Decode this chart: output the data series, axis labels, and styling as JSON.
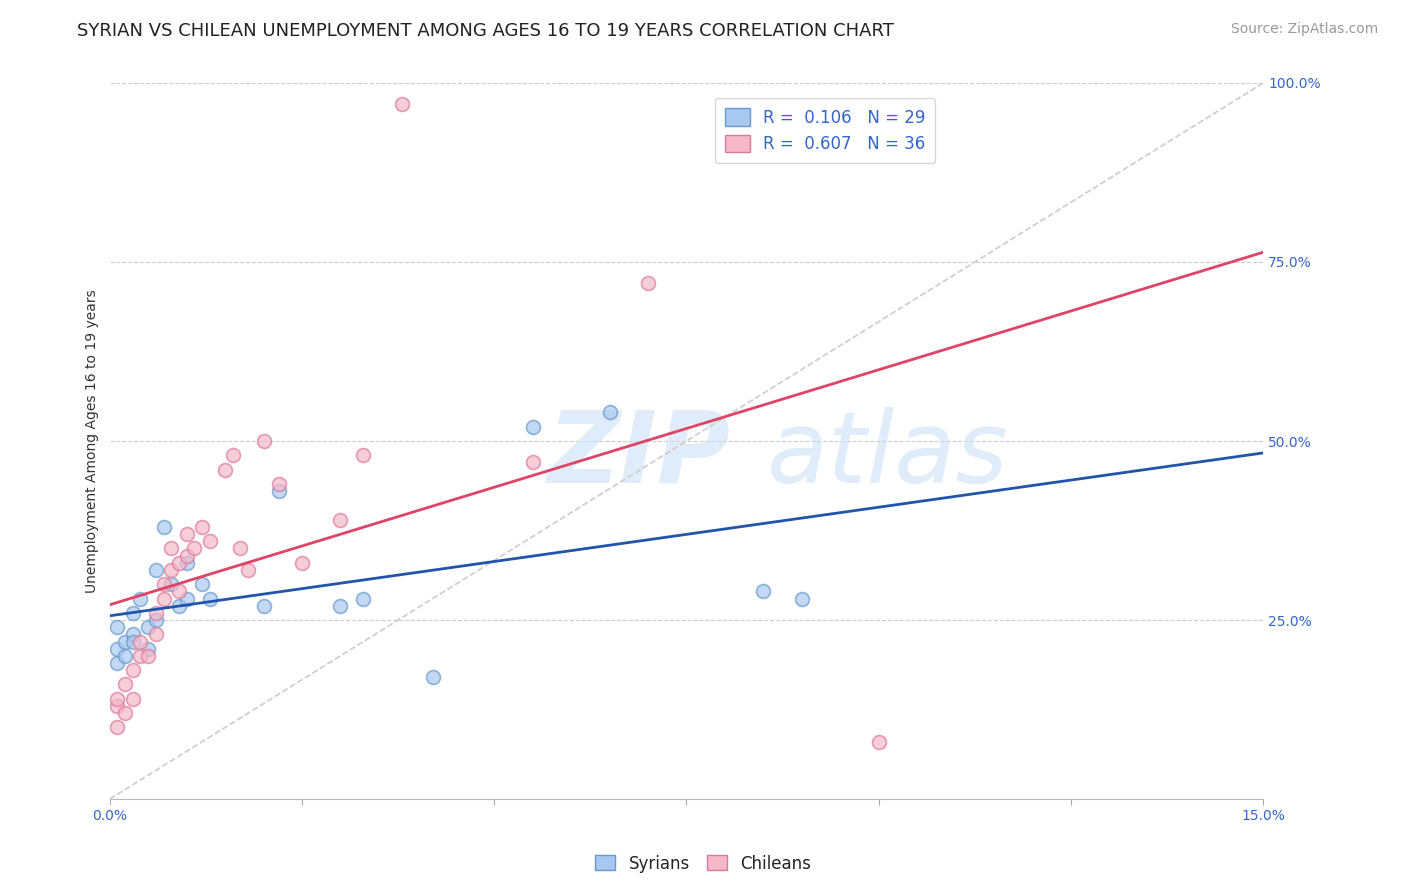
{
  "title": "SYRIAN VS CHILEAN UNEMPLOYMENT AMONG AGES 16 TO 19 YEARS CORRELATION CHART",
  "source": "Source: ZipAtlas.com",
  "ylabel": "Unemployment Among Ages 16 to 19 years",
  "xlim": [
    0.0,
    0.15
  ],
  "ylim": [
    0.0,
    1.0
  ],
  "ytick_positions": [
    0.0,
    0.25,
    0.5,
    0.75,
    1.0
  ],
  "ytick_labels": [
    "",
    "25.0%",
    "50.0%",
    "75.0%",
    "100.0%"
  ],
  "xtick_left_label": "0.0%",
  "xtick_right_label": "15.0%",
  "background_color": "#ffffff",
  "grid_color": "#cccccc",
  "syrian_color": "#a8c8f0",
  "syrian_edge_color": "#6699cc",
  "chilean_color": "#f5b8c8",
  "chilean_edge_color": "#dd7799",
  "trend_syrian_color": "#2255aa",
  "trend_chilean_color": "#dd4466",
  "diag_color": "#cccccc",
  "syrian_R": 0.106,
  "syrian_N": 29,
  "chilean_R": 0.607,
  "chilean_N": 36,
  "syrians_x": [
    0.001,
    0.001,
    0.001,
    0.002,
    0.002,
    0.003,
    0.003,
    0.003,
    0.004,
    0.005,
    0.005,
    0.006,
    0.006,
    0.007,
    0.008,
    0.009,
    0.01,
    0.01,
    0.012,
    0.013,
    0.02,
    0.022,
    0.03,
    0.033,
    0.042,
    0.055,
    0.065,
    0.085,
    0.09
  ],
  "syrians_y": [
    0.21,
    0.24,
    0.19,
    0.22,
    0.2,
    0.23,
    0.26,
    0.22,
    0.28,
    0.21,
    0.24,
    0.25,
    0.32,
    0.38,
    0.3,
    0.27,
    0.28,
    0.33,
    0.3,
    0.28,
    0.27,
    0.43,
    0.27,
    0.28,
    0.17,
    0.52,
    0.54,
    0.29,
    0.28
  ],
  "chileans_x": [
    0.001,
    0.001,
    0.001,
    0.002,
    0.002,
    0.003,
    0.003,
    0.004,
    0.004,
    0.005,
    0.006,
    0.006,
    0.007,
    0.007,
    0.008,
    0.008,
    0.009,
    0.009,
    0.01,
    0.01,
    0.011,
    0.012,
    0.013,
    0.015,
    0.016,
    0.017,
    0.018,
    0.02,
    0.022,
    0.025,
    0.03,
    0.033,
    0.038,
    0.055,
    0.07,
    0.1
  ],
  "chileans_y": [
    0.13,
    0.1,
    0.14,
    0.16,
    0.12,
    0.18,
    0.14,
    0.2,
    0.22,
    0.2,
    0.23,
    0.26,
    0.3,
    0.28,
    0.32,
    0.35,
    0.33,
    0.29,
    0.34,
    0.37,
    0.35,
    0.38,
    0.36,
    0.46,
    0.48,
    0.35,
    0.32,
    0.5,
    0.44,
    0.33,
    0.39,
    0.48,
    0.97,
    0.47,
    0.72,
    0.08
  ],
  "title_fontsize": 13,
  "axis_label_fontsize": 10,
  "tick_fontsize": 10,
  "legend_fontsize": 12,
  "source_fontsize": 10,
  "marker_size": 100,
  "marker_linewidth": 1.2
}
